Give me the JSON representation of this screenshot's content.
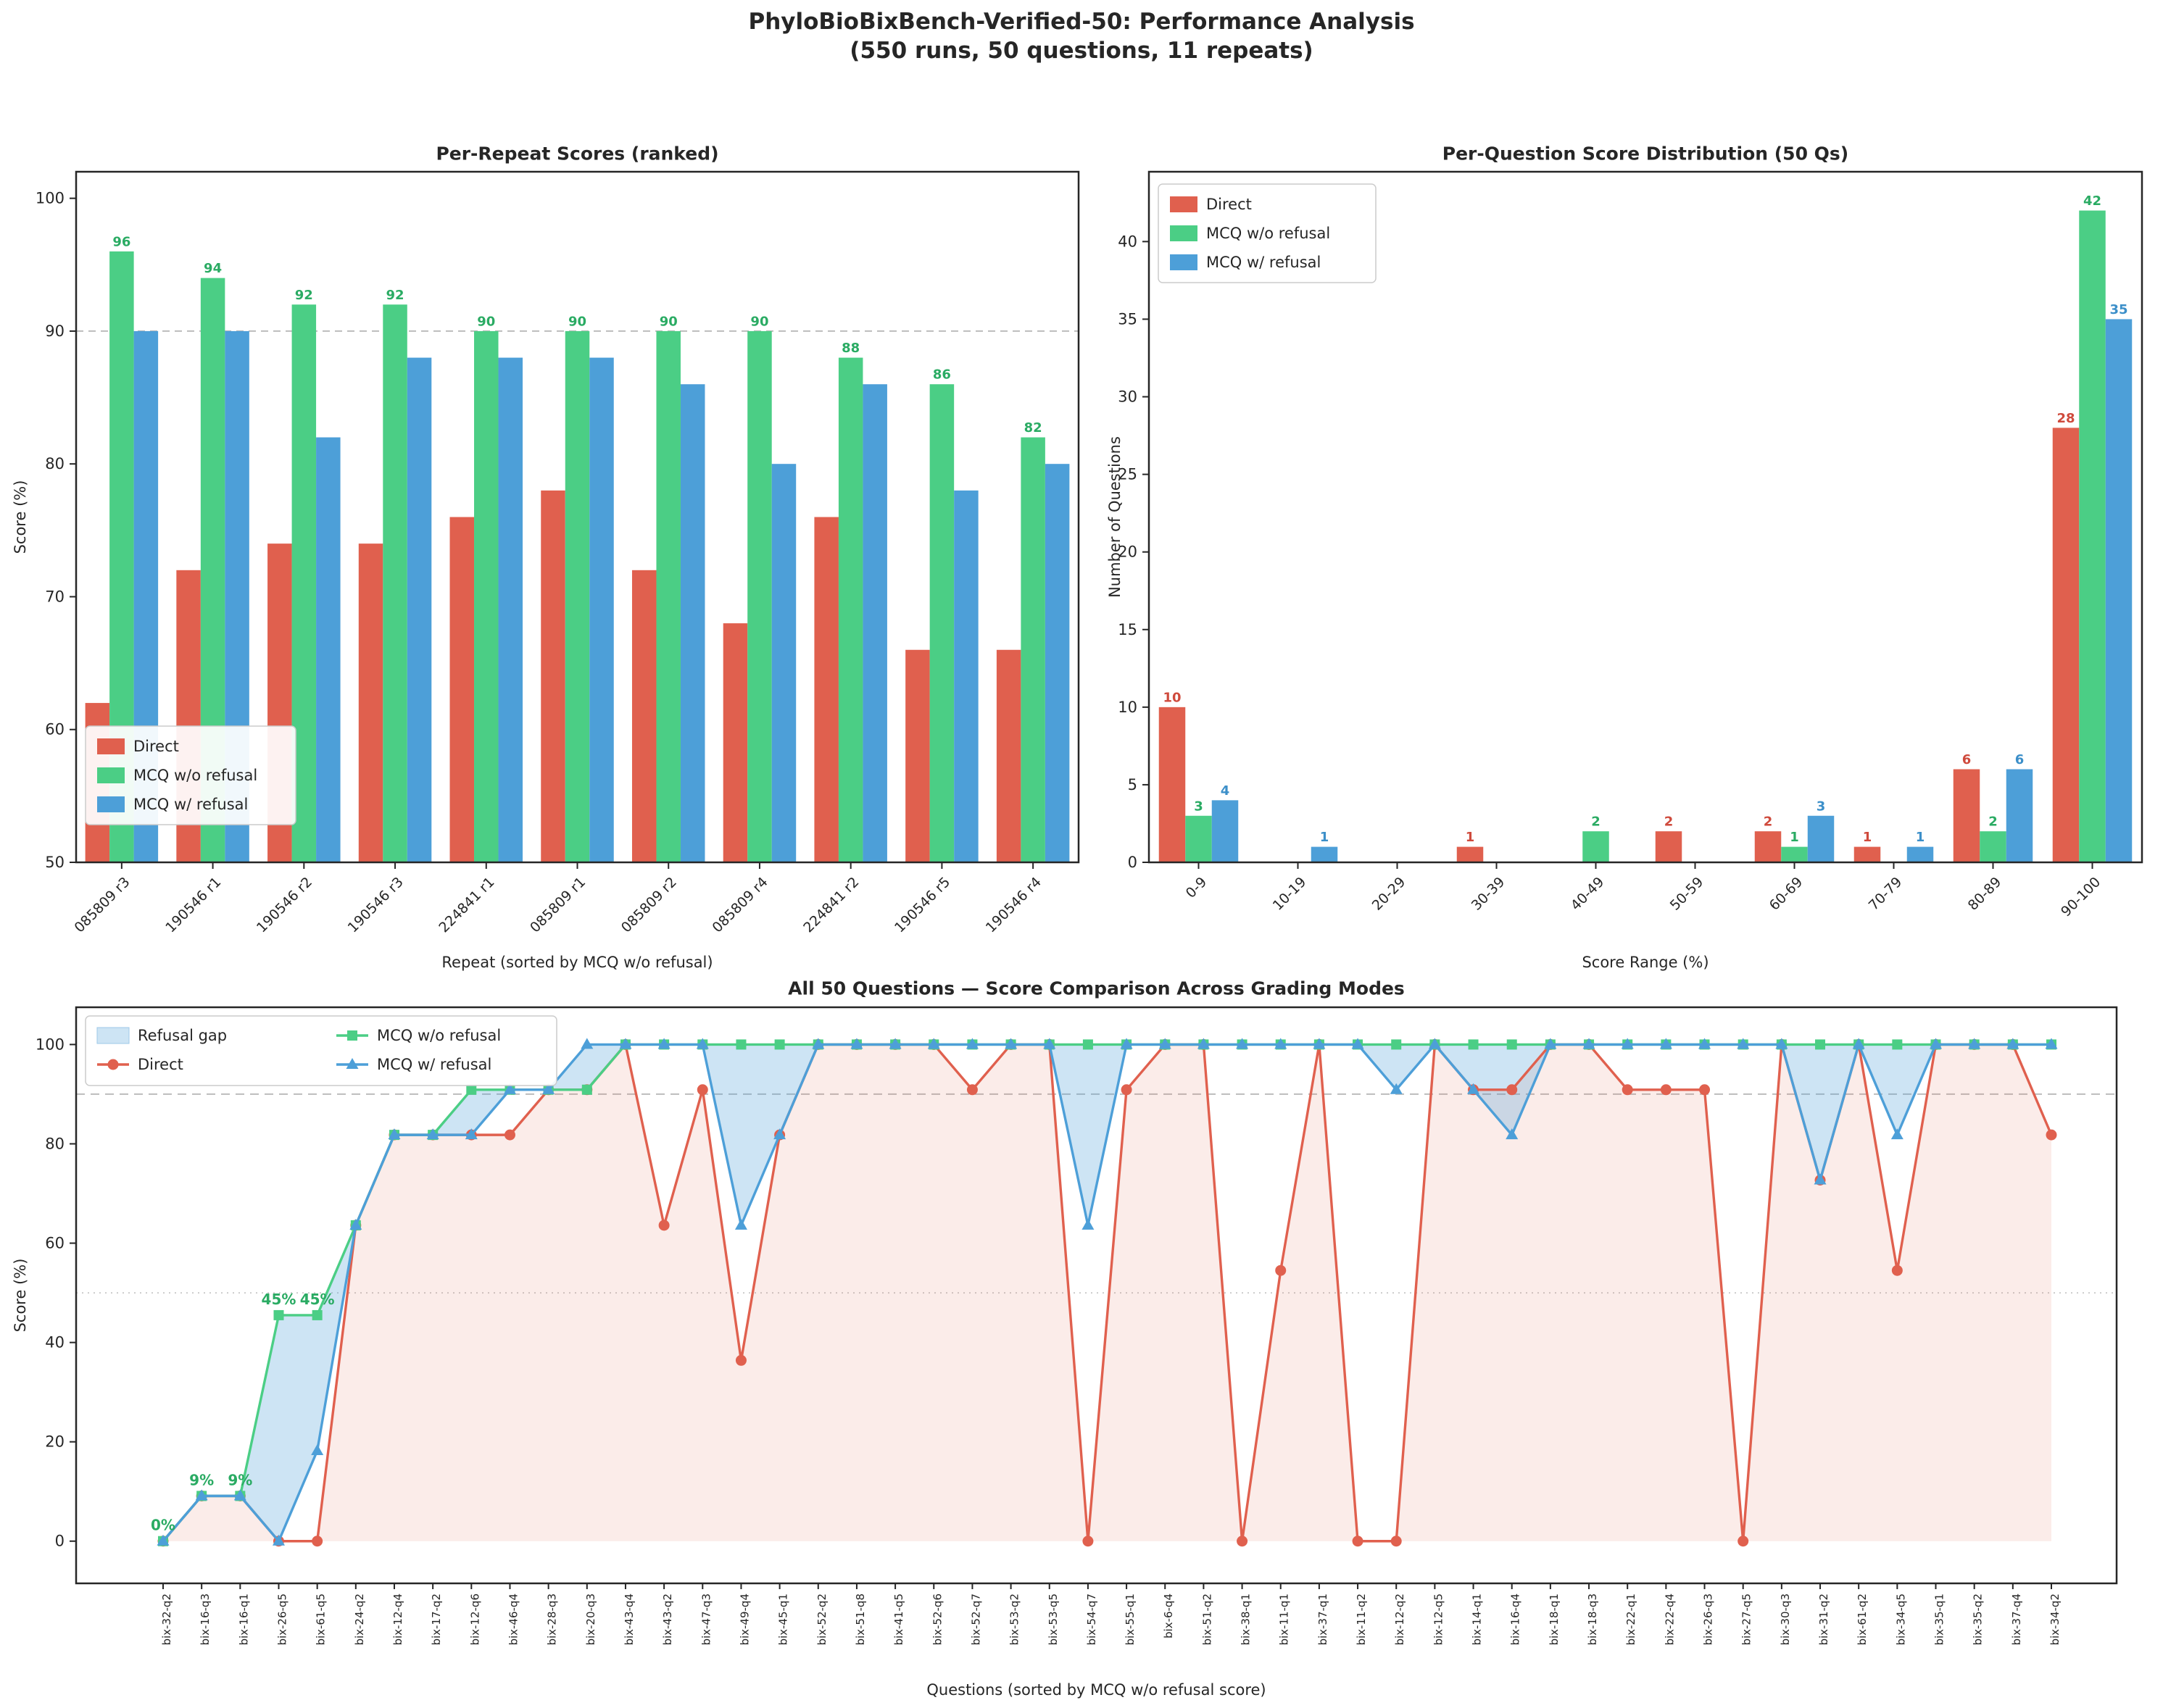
{
  "figure": {
    "title_line1": "PhyloBioBixBench-Verified-50: Performance Analysis",
    "title_line2": "(550 runs, 50 questions, 11 repeats)"
  },
  "colors": {
    "direct": "#e0604e",
    "mcq_wo": "#4bce85",
    "mcq_w": "#4d9fd8",
    "direct_label": "#cf4a3c",
    "mcq_wo_label": "#2aab63",
    "mcq_w_label": "#3c8fc9",
    "direct_fill": "rgba(224,96,78,0.12)",
    "refusal_gap_fill": "rgba(77,159,216,0.28)",
    "grid_dashed": "#bdbdbd",
    "grid_dotted": "#cccccc",
    "axis": "#262626"
  },
  "legend_labels": {
    "direct": "Direct",
    "mcq_wo": "MCQ w/o refusal",
    "mcq_w": "MCQ w/ refusal",
    "refusal_gap": "Refusal gap"
  },
  "chart_data": [
    {
      "id": "per_repeat",
      "type": "bar",
      "title": "Per-Repeat Scores (ranked)",
      "xlabel": "Repeat (sorted by MCQ w/o refusal)",
      "ylabel": "Score (%)",
      "ylim": [
        50,
        102
      ],
      "yticks": [
        50,
        60,
        70,
        80,
        90,
        100
      ],
      "gridline_dashed_y": 90,
      "legend_position": "lower left",
      "categories": [
        "085809 r3",
        "190546 r1",
        "190546 r2",
        "190546 r3",
        "224841 r1",
        "085809 r1",
        "085809 r2",
        "085809 r4",
        "224841 r2",
        "190546 r5",
        "190546 r4"
      ],
      "series": [
        {
          "name": "Direct",
          "values": [
            62,
            72,
            74,
            74,
            76,
            78,
            72,
            68,
            76,
            66,
            66
          ]
        },
        {
          "name": "MCQ w/o refusal",
          "values": [
            96,
            94,
            92,
            92,
            90,
            90,
            90,
            90,
            88,
            86,
            82
          ],
          "show_labels": true
        },
        {
          "name": "MCQ w/ refusal",
          "values": [
            90,
            90,
            82,
            88,
            88,
            88,
            86,
            80,
            86,
            78,
            80
          ]
        }
      ]
    },
    {
      "id": "distribution",
      "type": "bar",
      "title": "Per-Question Score Distribution (50 Qs)",
      "xlabel": "Score Range (%)",
      "ylabel": "Number of Questions",
      "ylim": [
        0,
        44.5
      ],
      "yticks": [
        0,
        5,
        10,
        15,
        20,
        25,
        30,
        35,
        40
      ],
      "legend_position": "upper left",
      "label_all_nonzero": true,
      "categories": [
        "0-9",
        "10-19",
        "20-29",
        "30-39",
        "40-49",
        "50-59",
        "60-69",
        "70-79",
        "80-89",
        "90-100"
      ],
      "series": [
        {
          "name": "Direct",
          "values": [
            10,
            0,
            0,
            1,
            0,
            2,
            2,
            1,
            6,
            28
          ]
        },
        {
          "name": "MCQ w/o refusal",
          "values": [
            3,
            0,
            0,
            0,
            2,
            0,
            1,
            0,
            2,
            42
          ]
        },
        {
          "name": "MCQ w/ refusal",
          "values": [
            4,
            1,
            0,
            0,
            0,
            0,
            3,
            1,
            6,
            35
          ]
        }
      ]
    },
    {
      "id": "per_question",
      "type": "line",
      "title": "All 50 Questions — Score Comparison Across Grading Modes",
      "xlabel": "Questions (sorted by MCQ w/o refusal score)",
      "ylabel": "Score (%)",
      "ylim": [
        -8.5,
        107.5
      ],
      "yticks": [
        0,
        20,
        40,
        60,
        80,
        100
      ],
      "gridline_dashed_y": 90,
      "gridline_dotted_y": 50,
      "legend_position": "upper left",
      "categories": [
        "bix-32-q2",
        "bix-16-q3",
        "bix-16-q1",
        "bix-26-q5",
        "bix-61-q5",
        "bix-24-q2",
        "bix-12-q4",
        "bix-17-q2",
        "bix-12-q6",
        "bix-46-q4",
        "bix-28-q3",
        "bix-20-q3",
        "bix-43-q4",
        "bix-43-q2",
        "bix-47-q3",
        "bix-49-q4",
        "bix-45-q1",
        "bix-52-q2",
        "bix-51-q8",
        "bix-41-q5",
        "bix-52-q6",
        "bix-52-q7",
        "bix-53-q2",
        "bix-53-q5",
        "bix-54-q7",
        "bix-55-q1",
        "bix-6-q4",
        "bix-51-q2",
        "bix-38-q1",
        "bix-11-q1",
        "bix-37-q1",
        "bix-11-q2",
        "bix-12-q2",
        "bix-12-q5",
        "bix-14-q1",
        "bix-16-q4",
        "bix-18-q1",
        "bix-18-q3",
        "bix-22-q1",
        "bix-22-q4",
        "bix-26-q3",
        "bix-27-q5",
        "bix-30-q3",
        "bix-31-q2",
        "bix-61-q2",
        "bix-34-q5",
        "bix-35-q1",
        "bix-35-q2",
        "bix-37-q4",
        "bix-34-q2"
      ],
      "series": [
        {
          "name": "Direct",
          "marker": "circle",
          "values": [
            0,
            9.1,
            9.1,
            0,
            0,
            63.6,
            81.8,
            81.8,
            81.8,
            81.8,
            90.9,
            90.9,
            100,
            63.6,
            90.9,
            36.4,
            81.8,
            100,
            100,
            100,
            100,
            90.9,
            100,
            100,
            0,
            90.9,
            100,
            100,
            0,
            54.5,
            100,
            0,
            0,
            100,
            90.9,
            90.9,
            100,
            100,
            90.9,
            90.9,
            90.9,
            0,
            100,
            72.7,
            100,
            54.5,
            100,
            100,
            100,
            81.8
          ]
        },
        {
          "name": "MCQ w/o refusal",
          "marker": "square",
          "values": [
            0,
            9.1,
            9.1,
            45.5,
            45.5,
            63.6,
            81.8,
            81.8,
            90.9,
            90.9,
            90.9,
            90.9,
            100,
            100,
            100,
            100,
            100,
            100,
            100,
            100,
            100,
            100,
            100,
            100,
            100,
            100,
            100,
            100,
            100,
            100,
            100,
            100,
            100,
            100,
            100,
            100,
            100,
            100,
            100,
            100,
            100,
            100,
            100,
            100,
            100,
            100,
            100,
            100,
            100,
            100
          ]
        },
        {
          "name": "MCQ w/ refusal",
          "marker": "triangle",
          "values": [
            0,
            9.1,
            9.1,
            0,
            18.2,
            63.6,
            81.8,
            81.8,
            81.8,
            90.9,
            90.9,
            100,
            100,
            100,
            100,
            63.6,
            81.8,
            100,
            100,
            100,
            100,
            100,
            100,
            100,
            63.6,
            100,
            100,
            100,
            100,
            100,
            100,
            100,
            90.9,
            100,
            90.9,
            81.8,
            100,
            100,
            100,
            100,
            100,
            100,
            100,
            72.7,
            100,
            81.8,
            100,
            100,
            100,
            100
          ]
        }
      ],
      "annotations": [
        {
          "index": 0,
          "text": "0%"
        },
        {
          "index": 1,
          "text": "9%"
        },
        {
          "index": 2,
          "text": "9%"
        },
        {
          "index": 3,
          "text": "45%"
        },
        {
          "index": 4,
          "text": "45%"
        }
      ]
    }
  ]
}
